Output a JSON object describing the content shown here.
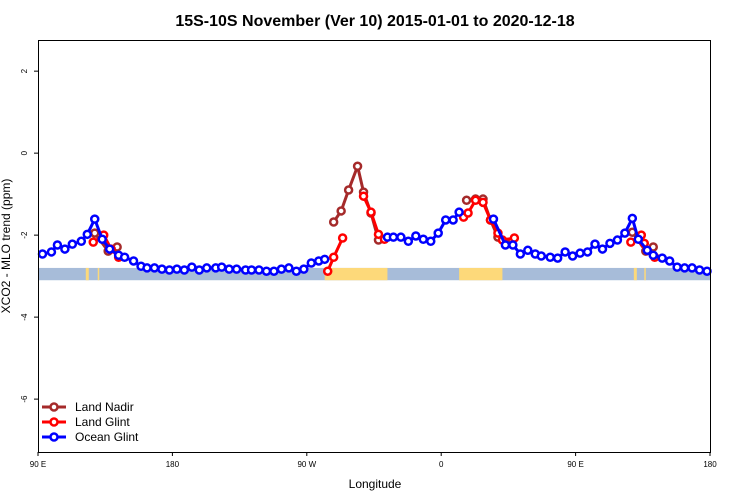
{
  "chart_data": {
    "type": "line",
    "title": "15S-10S November (Ver 10)   2015-01-01 to 2020-12-18",
    "xlabel": "Longitude",
    "ylabel": "XCO2 - MLO trend (ppm)",
    "xlim": [
      90,
      540
    ],
    "ylim": [
      -7.29,
      2.76
    ],
    "xticks": [
      90,
      180,
      270,
      360,
      450,
      540
    ],
    "xtick_labels": [
      "90 E",
      "180",
      "90 W",
      "0",
      "90 E",
      "180"
    ],
    "yticks": [
      2,
      0,
      -2,
      -4,
      -6
    ],
    "ytick_labels": [
      "2",
      "0",
      "-2",
      "-4",
      "-6"
    ],
    "legend_position": "bottom-left",
    "land_mask": {
      "band": [
        -2.8,
        -3.1
      ],
      "ocean_color": "#a7bcd9",
      "land_color": "#fdd97a",
      "land_ranges": [
        [
          282,
          324
        ],
        [
          372,
          401
        ],
        [
          122,
          124
        ],
        [
          130,
          131
        ],
        [
          489,
          491
        ],
        [
          496,
          497
        ]
      ]
    },
    "series": [
      {
        "name": "Land Nadir",
        "color": "#a52a2a",
        "segments": [
          [
            [
              128,
              -1.95
            ],
            [
              137,
              -2.39
            ],
            [
              143,
              -2.29
            ]
          ],
          [
            [
              288,
              -1.68
            ],
            [
              293,
              -1.41
            ],
            [
              298,
              -0.9
            ],
            [
              304,
              -0.32
            ],
            [
              308,
              -0.95
            ],
            [
              313,
              -1.46
            ],
            [
              318,
              -2.12
            ]
          ],
          [
            [
              377,
              -1.15
            ],
            [
              383,
              -1.12
            ],
            [
              388,
              -1.12
            ],
            [
              393,
              -1.63
            ],
            [
              398,
              -2.05
            ],
            [
              403,
              -2.17
            ]
          ],
          [
            [
              488,
              -1.93
            ],
            [
              497,
              -2.39
            ],
            [
              502,
              -2.29
            ]
          ]
        ]
      },
      {
        "name": "Land Glint",
        "color": "#ff0000",
        "segments": [
          [
            [
              127,
              -2.17
            ],
            [
              134,
              -2.0
            ],
            [
              139,
              -2.34
            ],
            [
              144,
              -2.54
            ]
          ],
          [
            [
              284,
              -2.88
            ],
            [
              288,
              -2.54
            ],
            [
              294,
              -2.07
            ]
          ],
          [
            [
              308,
              -1.05
            ],
            [
              313,
              -1.44
            ],
            [
              318,
              -1.98
            ],
            [
              322,
              -2.1
            ]
          ],
          [
            [
              375,
              -1.56
            ],
            [
              378,
              -1.46
            ],
            [
              383,
              -1.15
            ],
            [
              388,
              -1.2
            ],
            [
              393,
              -1.63
            ],
            [
              398,
              -1.95
            ],
            [
              401,
              -2.12
            ],
            [
              409,
              -2.07
            ]
          ],
          [
            [
              487,
              -2.17
            ],
            [
              494,
              -2.0
            ],
            [
              496,
              -2.2
            ],
            [
              503,
              -2.54
            ]
          ]
        ]
      },
      {
        "name": "Ocean Glint",
        "color": "#0000ff",
        "segments": [
          [
            [
              93,
              -2.46
            ],
            [
              99,
              -2.41
            ],
            [
              103,
              -2.24
            ],
            [
              108,
              -2.34
            ],
            [
              113,
              -2.22
            ],
            [
              119,
              -2.15
            ],
            [
              123,
              -1.98
            ],
            [
              128,
              -1.61
            ],
            [
              133,
              -2.1
            ],
            [
              138,
              -2.34
            ],
            [
              144,
              -2.49
            ],
            [
              148,
              -2.54
            ],
            [
              154,
              -2.63
            ],
            [
              159,
              -2.76
            ],
            [
              163,
              -2.8
            ],
            [
              168,
              -2.8
            ],
            [
              173,
              -2.83
            ],
            [
              178,
              -2.85
            ],
            [
              183,
              -2.83
            ],
            [
              188,
              -2.85
            ],
            [
              193,
              -2.78
            ],
            [
              198,
              -2.85
            ],
            [
              203,
              -2.8
            ],
            [
              209,
              -2.8
            ],
            [
              213,
              -2.78
            ],
            [
              218,
              -2.83
            ],
            [
              223,
              -2.83
            ],
            [
              229,
              -2.85
            ],
            [
              233,
              -2.85
            ],
            [
              238,
              -2.85
            ],
            [
              243,
              -2.88
            ],
            [
              248,
              -2.88
            ],
            [
              253,
              -2.83
            ],
            [
              258,
              -2.8
            ],
            [
              263,
              -2.88
            ],
            [
              268,
              -2.83
            ],
            [
              273,
              -2.68
            ],
            [
              278,
              -2.63
            ],
            [
              282,
              -2.59
            ]
          ],
          [
            [
              324,
              -2.05
            ],
            [
              328,
              -2.05
            ],
            [
              333,
              -2.05
            ],
            [
              338,
              -2.15
            ],
            [
              343,
              -2.02
            ],
            [
              348,
              -2.1
            ],
            [
              353,
              -2.15
            ],
            [
              358,
              -1.95
            ],
            [
              363,
              -1.63
            ],
            [
              368,
              -1.63
            ],
            [
              372,
              -1.44
            ]
          ],
          [
            [
              395,
              -1.61
            ],
            [
              403,
              -2.24
            ],
            [
              408,
              -2.24
            ],
            [
              413,
              -2.46
            ],
            [
              418,
              -2.37
            ],
            [
              423,
              -2.46
            ],
            [
              427,
              -2.51
            ],
            [
              433,
              -2.54
            ],
            [
              438,
              -2.56
            ],
            [
              443,
              -2.41
            ],
            [
              448,
              -2.51
            ],
            [
              453,
              -2.44
            ],
            [
              458,
              -2.41
            ],
            [
              463,
              -2.22
            ],
            [
              468,
              -2.34
            ],
            [
              473,
              -2.2
            ],
            [
              478,
              -2.12
            ],
            [
              483,
              -1.95
            ],
            [
              488,
              -1.59
            ],
            [
              492,
              -2.1
            ],
            [
              498,
              -2.37
            ],
            [
              502,
              -2.49
            ],
            [
              508,
              -2.56
            ],
            [
              513,
              -2.63
            ],
            [
              518,
              -2.78
            ],
            [
              523,
              -2.8
            ],
            [
              528,
              -2.8
            ],
            [
              533,
              -2.85
            ],
            [
              538,
              -2.88
            ]
          ]
        ]
      }
    ]
  }
}
